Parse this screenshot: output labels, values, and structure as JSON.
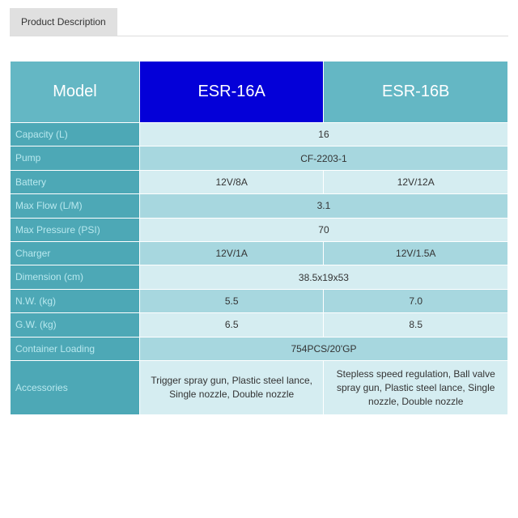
{
  "tab": {
    "label": "Product Description"
  },
  "colors": {
    "tab_bg": "#e0e0e0",
    "tab_text": "#333333",
    "header_model_bg": "#64b7c4",
    "header_a_bg": "#0400d8",
    "header_b_bg": "#64b7c4",
    "header_text": "#ffffff",
    "row_label_bg": "#4da8b6",
    "row_label_text": "#b8e8ee",
    "row_light_bg": "#d5edf1",
    "row_dark_bg": "#a7d7df",
    "cell_text": "#333333",
    "border": "#ffffff"
  },
  "table": {
    "headers": {
      "model": "Model",
      "a": "ESR-16A",
      "b": "ESR-16B"
    },
    "rows": [
      {
        "label": "Capacity (L)",
        "shared": "16"
      },
      {
        "label": "Pump",
        "shared": "CF-2203-1"
      },
      {
        "label": "Battery",
        "a": "12V/8A",
        "b": "12V/12A"
      },
      {
        "label": "Max Flow (L/M)",
        "shared": "3.1"
      },
      {
        "label": "Max Pressure (PSI)",
        "shared": "70"
      },
      {
        "label": "Charger",
        "a": "12V/1A",
        "b": "12V/1.5A"
      },
      {
        "label": "Dimension (cm)",
        "shared": "38.5x19x53"
      },
      {
        "label": "N.W. (kg)",
        "a": "5.5",
        "b": "7.0"
      },
      {
        "label": "G.W. (kg)",
        "a": "6.5",
        "b": "8.5"
      },
      {
        "label": "Container Loading",
        "shared": "754PCS/20'GP"
      },
      {
        "label": "Accessories",
        "a": "Trigger spray gun, Plastic steel lance, Single nozzle, Double nozzle",
        "b": "Stepless speed regulation, Ball valve spray gun, Plastic steel lance, Single nozzle, Double nozzle"
      }
    ]
  }
}
